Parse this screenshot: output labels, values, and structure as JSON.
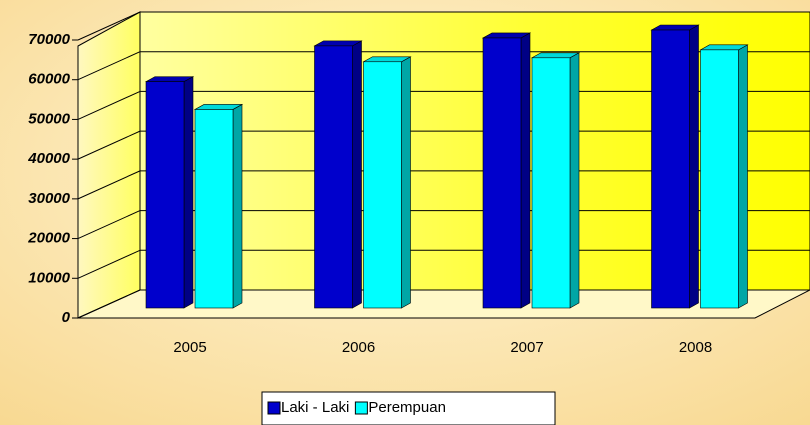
{
  "chart_data": {
    "type": "bar3d",
    "categories": [
      "2005",
      "2006",
      "2007",
      "2008"
    ],
    "series": [
      {
        "name": "Laki - Laki",
        "color": "#0000cc",
        "values": [
          57000,
          66000,
          68000,
          70000
        ]
      },
      {
        "name": "Perempuan",
        "color": "#00ffff",
        "values": [
          50000,
          62000,
          63000,
          65000
        ]
      }
    ],
    "ylim": [
      0,
      70000
    ],
    "yticks": [
      0,
      10000,
      20000,
      30000,
      40000,
      50000,
      60000,
      70000
    ],
    "grid": true,
    "legend": "bottom"
  }
}
